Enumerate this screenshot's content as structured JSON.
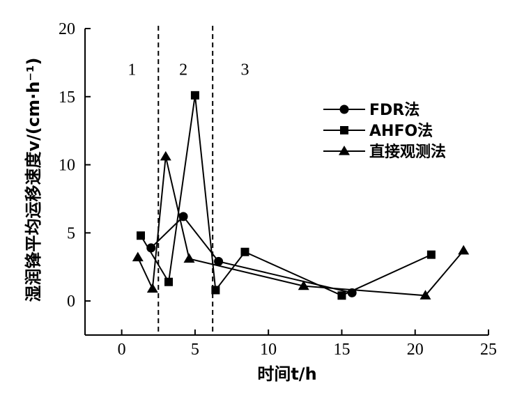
{
  "chart_data": {
    "type": "line",
    "title": "",
    "xlabel": "时间t/h",
    "ylabel": "湿润锋平均运移速度v/(cm·h⁻¹)",
    "xlim": [
      -2.5,
      25
    ],
    "ylim": [
      -2.5,
      20
    ],
    "xticks": [
      "0",
      "5",
      "10",
      "15",
      "20",
      "25"
    ],
    "xtick_values": [
      0,
      5,
      10,
      15,
      20,
      25
    ],
    "yticks": [
      "0",
      "5",
      "10",
      "15",
      "20"
    ],
    "ytick_values": [
      0,
      5,
      10,
      15,
      20
    ],
    "grid": false,
    "legend_position": "right",
    "dividers": [
      2.5,
      6.2
    ],
    "regions": [
      {
        "label": "1",
        "x": 0.7,
        "y": 16.6
      },
      {
        "label": "2",
        "x": 4.2,
        "y": 16.6
      },
      {
        "label": "3",
        "x": 8.4,
        "y": 16.6
      }
    ],
    "series": [
      {
        "name": "FDR法",
        "marker": "circle",
        "points": [
          [
            2.0,
            3.9
          ],
          [
            4.2,
            6.2
          ],
          [
            6.6,
            2.9
          ],
          [
            15.7,
            0.6
          ]
        ]
      },
      {
        "name": "AHFO法",
        "marker": "square",
        "points": [
          [
            1.3,
            4.8
          ],
          [
            3.2,
            1.4
          ],
          [
            5.0,
            15.1
          ],
          [
            6.4,
            0.8
          ],
          [
            8.4,
            3.6
          ],
          [
            15.0,
            0.4
          ],
          [
            21.1,
            3.4
          ]
        ]
      },
      {
        "name": "直接观测法",
        "marker": "triangle",
        "points": [
          [
            1.1,
            3.2
          ],
          [
            2.1,
            0.9
          ],
          [
            3.0,
            10.6
          ],
          [
            4.6,
            3.1
          ],
          [
            12.4,
            1.1
          ],
          [
            20.7,
            0.4
          ],
          [
            23.3,
            3.7
          ]
        ]
      }
    ]
  }
}
